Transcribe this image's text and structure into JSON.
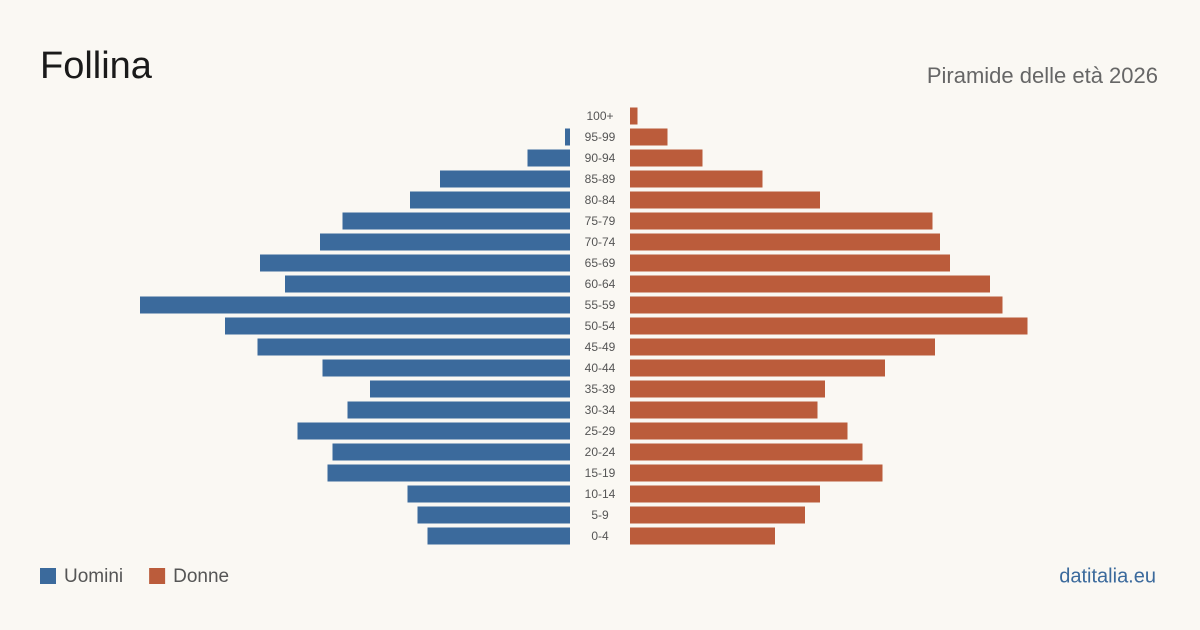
{
  "chart_data": {
    "type": "pyramid",
    "title": "Follina",
    "subtitle": "Piramide delle età 2026",
    "source": "datitalia.eu",
    "categories": [
      "100+",
      "95-99",
      "90-94",
      "85-89",
      "80-84",
      "75-79",
      "70-74",
      "65-69",
      "60-64",
      "55-59",
      "50-54",
      "45-49",
      "40-44",
      "35-39",
      "30-34",
      "25-29",
      "20-24",
      "15-19",
      "10-14",
      "5-9",
      "0-4"
    ],
    "series": [
      {
        "name": "Uomini",
        "color": "#3b6a9c",
        "values": [
          0,
          2,
          17,
          52,
          64,
          91,
          100,
          124,
          114,
          172,
          138,
          125,
          99,
          80,
          89,
          109,
          95,
          97,
          65,
          61,
          57
        ]
      },
      {
        "name": "Donne",
        "color": "#bb5c3b",
        "values": [
          3,
          15,
          29,
          53,
          76,
          121,
          124,
          128,
          144,
          149,
          159,
          122,
          102,
          78,
          75,
          87,
          93,
          101,
          76,
          70,
          58
        ]
      }
    ],
    "xlim": [
      0,
      212
    ]
  }
}
